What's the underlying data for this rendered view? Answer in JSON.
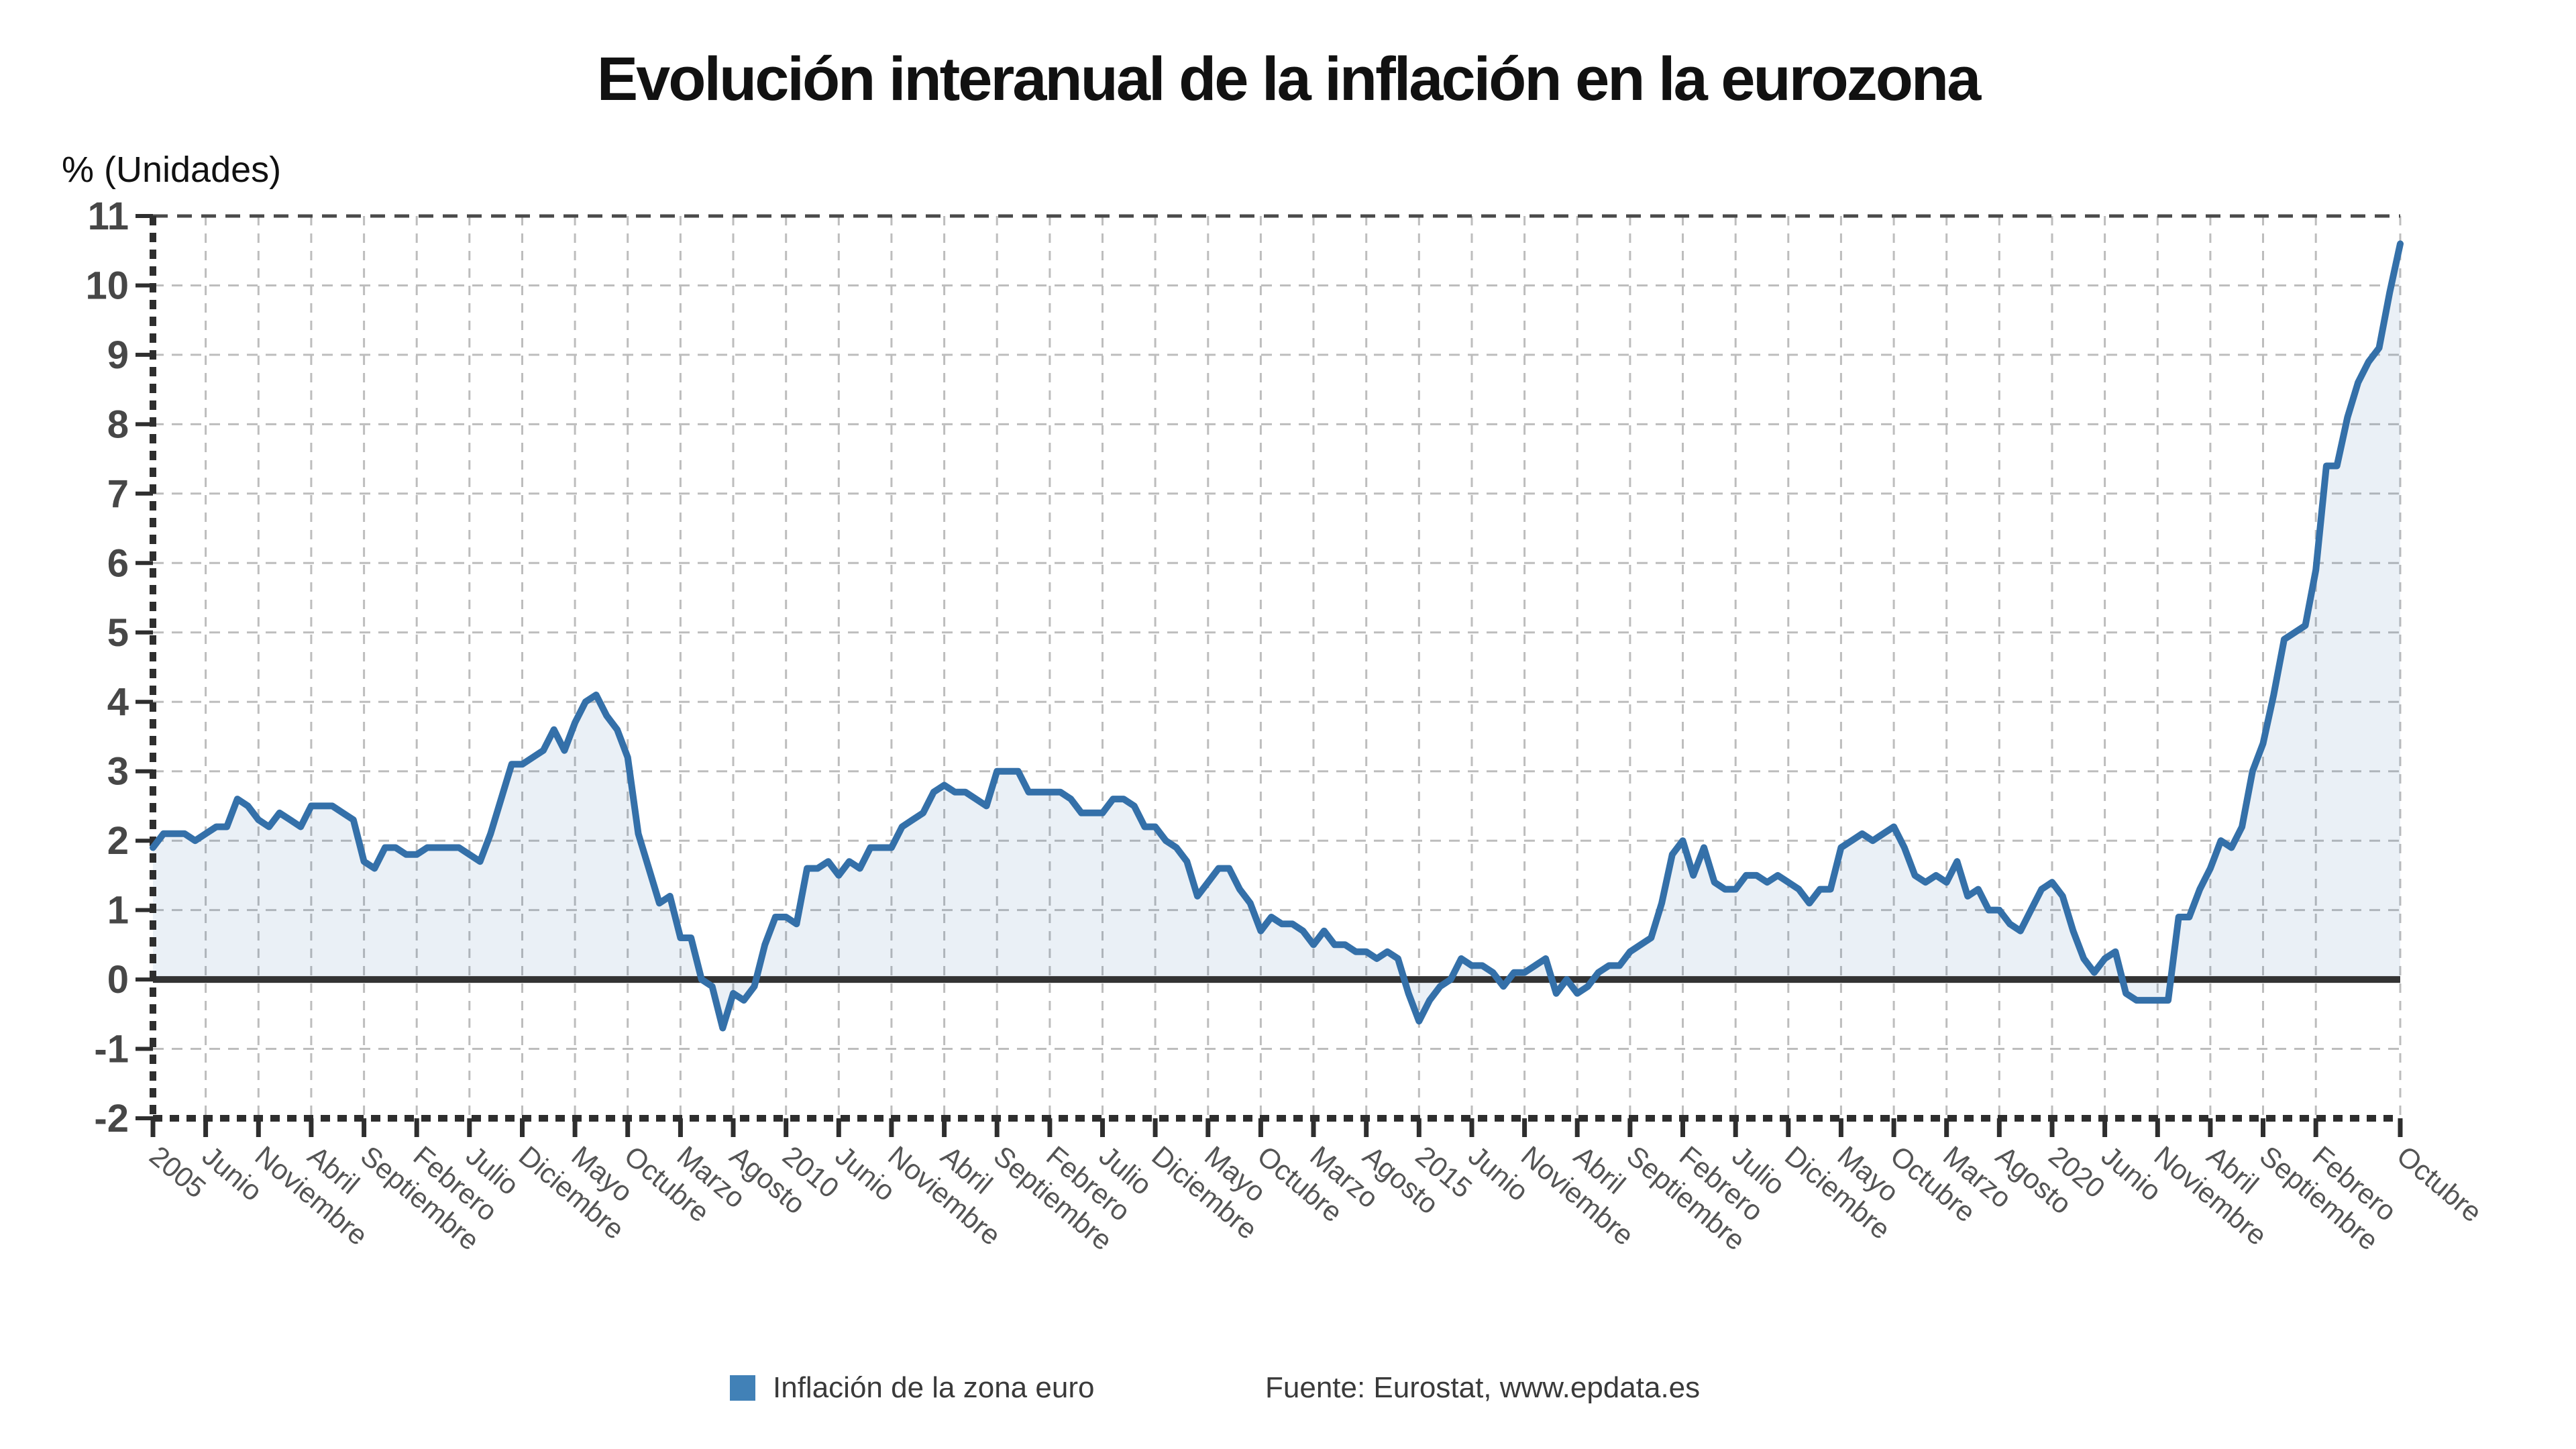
{
  "title": "Evolución interanual de la inflación en la eurozona",
  "y_axis_label": "% (Unidades)",
  "legend": {
    "series": "Inflación de la zona euro",
    "source": "Fuente: Eurostat, www.epdata.es"
  },
  "colors": {
    "line": "#3470a9",
    "area_fill": "rgba(52,112,169,0.10)",
    "legend_swatch": "#4181b7",
    "zero_line": "#333333",
    "axis": "#2e2e2e",
    "frame_top": "#4a4a4a",
    "gridline": "#bdbdbd",
    "y_tick_label": "#474747",
    "x_tick_label": "#545454"
  },
  "chart_data": {
    "type": "line",
    "title": "Evolución interanual de la inflación en la eurozona",
    "ylabel": "% (Unidades)",
    "ylim": [
      -2,
      11
    ],
    "y_tick_step": 1,
    "grid": true,
    "baseline": 0,
    "legend_position": "bottom",
    "x_unit": "month",
    "x_range": [
      "2005-01",
      "2022-10"
    ],
    "x_ticks": [
      {
        "m": 0,
        "label": "2005"
      },
      {
        "m": 5,
        "label": "Junio"
      },
      {
        "m": 10,
        "label": "Noviembre"
      },
      {
        "m": 15,
        "label": "Abril"
      },
      {
        "m": 20,
        "label": "Septiembre"
      },
      {
        "m": 25,
        "label": "Febrero"
      },
      {
        "m": 30,
        "label": "Julio"
      },
      {
        "m": 35,
        "label": "Diciembre"
      },
      {
        "m": 40,
        "label": "Mayo"
      },
      {
        "m": 45,
        "label": "Octubre"
      },
      {
        "m": 50,
        "label": "Marzo"
      },
      {
        "m": 55,
        "label": "Agosto"
      },
      {
        "m": 60,
        "label": "2010"
      },
      {
        "m": 65,
        "label": "Junio"
      },
      {
        "m": 70,
        "label": "Noviembre"
      },
      {
        "m": 75,
        "label": "Abril"
      },
      {
        "m": 80,
        "label": "Septiembre"
      },
      {
        "m": 85,
        "label": "Febrero"
      },
      {
        "m": 90,
        "label": "Julio"
      },
      {
        "m": 95,
        "label": "Diciembre"
      },
      {
        "m": 100,
        "label": "Mayo"
      },
      {
        "m": 105,
        "label": "Octubre"
      },
      {
        "m": 110,
        "label": "Marzo"
      },
      {
        "m": 115,
        "label": "Agosto"
      },
      {
        "m": 120,
        "label": "2015"
      },
      {
        "m": 125,
        "label": "Junio"
      },
      {
        "m": 130,
        "label": "Noviembre"
      },
      {
        "m": 135,
        "label": "Abril"
      },
      {
        "m": 140,
        "label": "Septiembre"
      },
      {
        "m": 145,
        "label": "Febrero"
      },
      {
        "m": 150,
        "label": "Julio"
      },
      {
        "m": 155,
        "label": "Diciembre"
      },
      {
        "m": 160,
        "label": "Mayo"
      },
      {
        "m": 165,
        "label": "Octubre"
      },
      {
        "m": 170,
        "label": "Marzo"
      },
      {
        "m": 175,
        "label": "Agosto"
      },
      {
        "m": 180,
        "label": "2020"
      },
      {
        "m": 185,
        "label": "Junio"
      },
      {
        "m": 190,
        "label": "Noviembre"
      },
      {
        "m": 195,
        "label": "Abril"
      },
      {
        "m": 200,
        "label": "Septiembre"
      },
      {
        "m": 205,
        "label": "Febrero"
      },
      {
        "m": 213,
        "label": "Octubre"
      }
    ],
    "series": [
      {
        "name": "Inflación de la zona euro",
        "color": "#3470a9",
        "values": [
          1.9,
          2.1,
          2.1,
          2.1,
          2.0,
          2.1,
          2.2,
          2.2,
          2.6,
          2.5,
          2.3,
          2.2,
          2.4,
          2.3,
          2.2,
          2.5,
          2.5,
          2.5,
          2.4,
          2.3,
          1.7,
          1.6,
          1.9,
          1.9,
          1.8,
          1.8,
          1.9,
          1.9,
          1.9,
          1.9,
          1.8,
          1.7,
          2.1,
          2.6,
          3.1,
          3.1,
          3.2,
          3.3,
          3.6,
          3.3,
          3.7,
          4.0,
          4.1,
          3.8,
          3.6,
          3.2,
          2.1,
          1.6,
          1.1,
          1.2,
          0.6,
          0.6,
          0.0,
          -0.1,
          -0.7,
          -0.2,
          -0.3,
          -0.1,
          0.5,
          0.9,
          0.9,
          0.8,
          1.6,
          1.6,
          1.7,
          1.5,
          1.7,
          1.6,
          1.9,
          1.9,
          1.9,
          2.2,
          2.3,
          2.4,
          2.7,
          2.8,
          2.7,
          2.7,
          2.6,
          2.5,
          3.0,
          3.0,
          3.0,
          2.7,
          2.7,
          2.7,
          2.7,
          2.6,
          2.4,
          2.4,
          2.4,
          2.6,
          2.6,
          2.5,
          2.2,
          2.2,
          2.0,
          1.9,
          1.7,
          1.2,
          1.4,
          1.6,
          1.6,
          1.3,
          1.1,
          0.7,
          0.9,
          0.8,
          0.8,
          0.7,
          0.5,
          0.7,
          0.5,
          0.5,
          0.4,
          0.4,
          0.3,
          0.4,
          0.3,
          -0.2,
          -0.6,
          -0.3,
          -0.1,
          0.0,
          0.3,
          0.2,
          0.2,
          0.1,
          -0.1,
          0.1,
          0.1,
          0.2,
          0.3,
          -0.2,
          0.0,
          -0.2,
          -0.1,
          0.1,
          0.2,
          0.2,
          0.4,
          0.5,
          0.6,
          1.1,
          1.8,
          2.0,
          1.5,
          1.9,
          1.4,
          1.3,
          1.3,
          1.5,
          1.5,
          1.4,
          1.5,
          1.4,
          1.3,
          1.1,
          1.3,
          1.3,
          1.9,
          2.0,
          2.1,
          2.0,
          2.1,
          2.2,
          1.9,
          1.5,
          1.4,
          1.5,
          1.4,
          1.7,
          1.2,
          1.3,
          1.0,
          1.0,
          0.8,
          0.7,
          1.0,
          1.3,
          1.4,
          1.2,
          0.7,
          0.3,
          0.1,
          0.3,
          0.4,
          -0.2,
          -0.3,
          -0.3,
          -0.3,
          -0.3,
          0.9,
          0.9,
          1.3,
          1.6,
          2.0,
          1.9,
          2.2,
          3.0,
          3.4,
          4.1,
          4.9,
          5.0,
          5.1,
          5.9,
          7.4,
          7.4,
          8.1,
          8.6,
          8.9,
          9.1,
          9.9,
          10.6
        ]
      }
    ]
  }
}
